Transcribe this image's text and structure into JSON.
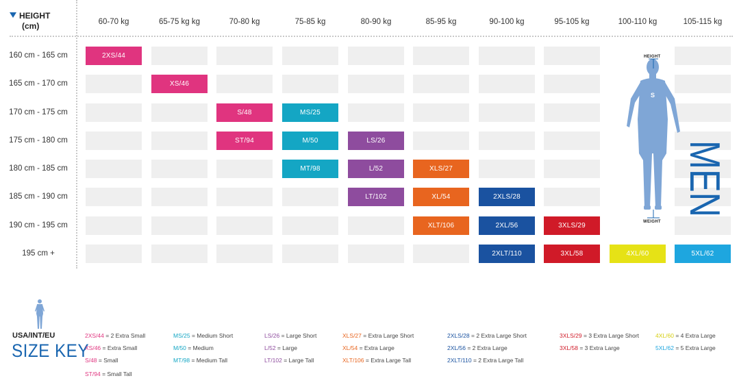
{
  "header": {
    "height_label": "HEIGHT",
    "height_unit": "(cm)"
  },
  "columns": [
    "60-70 kg",
    "65-75 kg kg",
    "70-80 kg",
    "75-85 kg",
    "80-90 kg",
    "85-95 kg",
    "90-100 kg",
    "95-105 kg",
    "100-110 kg",
    "105-115 kg"
  ],
  "rows": [
    "160 cm - 165 cm",
    "165 cm - 170 cm",
    "170 cm - 175 cm",
    "175 cm - 180 cm",
    "180 cm - 185 cm",
    "185 cm - 190 cm",
    "190 cm - 195 cm",
    "195 cm +"
  ],
  "cells": [
    {
      "row": 0,
      "col": 0,
      "label": "2XS/44",
      "color": "#e0347f"
    },
    {
      "row": 1,
      "col": 1,
      "label": "XS/46",
      "color": "#e0347f"
    },
    {
      "row": 2,
      "col": 2,
      "label": "S/48",
      "color": "#e0347f"
    },
    {
      "row": 2,
      "col": 3,
      "label": "MS/25",
      "color": "#14a6c4"
    },
    {
      "row": 3,
      "col": 2,
      "label": "ST/94",
      "color": "#e0347f"
    },
    {
      "row": 3,
      "col": 3,
      "label": "M/50",
      "color": "#14a6c4"
    },
    {
      "row": 3,
      "col": 4,
      "label": "LS/26",
      "color": "#8e4c9e"
    },
    {
      "row": 4,
      "col": 3,
      "label": "MT/98",
      "color": "#14a6c4"
    },
    {
      "row": 4,
      "col": 4,
      "label": "L/52",
      "color": "#8e4c9e"
    },
    {
      "row": 4,
      "col": 5,
      "label": "XLS/27",
      "color": "#e8651f"
    },
    {
      "row": 5,
      "col": 4,
      "label": "LT/102",
      "color": "#8e4c9e"
    },
    {
      "row": 5,
      "col": 5,
      "label": "XL/54",
      "color": "#e8651f"
    },
    {
      "row": 5,
      "col": 6,
      "label": "2XLS/28",
      "color": "#1a52a0"
    },
    {
      "row": 6,
      "col": 5,
      "label": "XLT/106",
      "color": "#e8651f"
    },
    {
      "row": 6,
      "col": 6,
      "label": "2XL/56",
      "color": "#1a52a0"
    },
    {
      "row": 6,
      "col": 7,
      "label": "3XLS/29",
      "color": "#d01a28"
    },
    {
      "row": 7,
      "col": 6,
      "label": "2XLT/110",
      "color": "#1a52a0"
    },
    {
      "row": 7,
      "col": 7,
      "label": "3XL/58",
      "color": "#d01a28"
    },
    {
      "row": 7,
      "col": 8,
      "label": "4XL/60",
      "color": "#e6e216"
    },
    {
      "row": 7,
      "col": 9,
      "label": "5XL/62",
      "color": "#1ea6df"
    }
  ],
  "figure": {
    "height_tag": "HEIGHT",
    "weight_tag": "WEIGHT",
    "men_label": "MEN",
    "body_color": "#7fa6d6",
    "men_color": "#1a66b0"
  },
  "key": {
    "region": "USA/INT/EU",
    "title": "SIZE KEY"
  },
  "legend": [
    [
      {
        "code": "2XS/44",
        "desc": "= 2 Extra Small",
        "color": "pink"
      },
      {
        "code": "XS/46",
        "desc": "= Extra Small",
        "color": "pink"
      },
      {
        "code": "S/48",
        "desc": "= Small",
        "color": "pink"
      },
      {
        "code": "ST/94",
        "desc": "= Small Tall",
        "color": "pink"
      }
    ],
    [
      {
        "code": "MS/25",
        "desc": "= Medium Short",
        "color": "cyan"
      },
      {
        "code": "M/50",
        "desc": "= Medium",
        "color": "cyan"
      },
      {
        "code": "MT/98",
        "desc": "= Medium Tall",
        "color": "cyan"
      }
    ],
    [
      {
        "code": "LS/26",
        "desc": "= Large Short",
        "color": "purple"
      },
      {
        "code": "L/52",
        "desc": "= Large",
        "color": "purple"
      },
      {
        "code": "LT/102",
        "desc": "= Large Tall",
        "color": "purple"
      }
    ],
    [
      {
        "code": "XLS/27",
        "desc": "= Extra Large Short",
        "color": "orange"
      },
      {
        "code": "XL/54",
        "desc": "= Extra Large",
        "color": "orange"
      },
      {
        "code": "XLT/106",
        "desc": "= Extra Large Tall",
        "color": "orange"
      }
    ],
    [
      {
        "code": "2XLS/28",
        "desc": "= 2 Extra Large Short",
        "color": "navy"
      },
      {
        "code": "2XL/56",
        "desc": "= 2 Extra Large",
        "color": "navy"
      },
      {
        "code": "2XLT/110",
        "desc": "= 2 Extra Large Tall",
        "color": "navy"
      }
    ],
    [
      {
        "code": "3XLS/29",
        "desc": "= 3 Extra Large Short",
        "color": "red"
      },
      {
        "code": "3XL/58",
        "desc": "= 3 Extra Large",
        "color": "red"
      }
    ],
    [
      {
        "code": "4XL/60",
        "desc": "= 4 Extra Large",
        "color": "yellow"
      },
      {
        "code": "5XL/62",
        "desc": "= 5 Extra Large",
        "color": "sky"
      }
    ]
  ]
}
